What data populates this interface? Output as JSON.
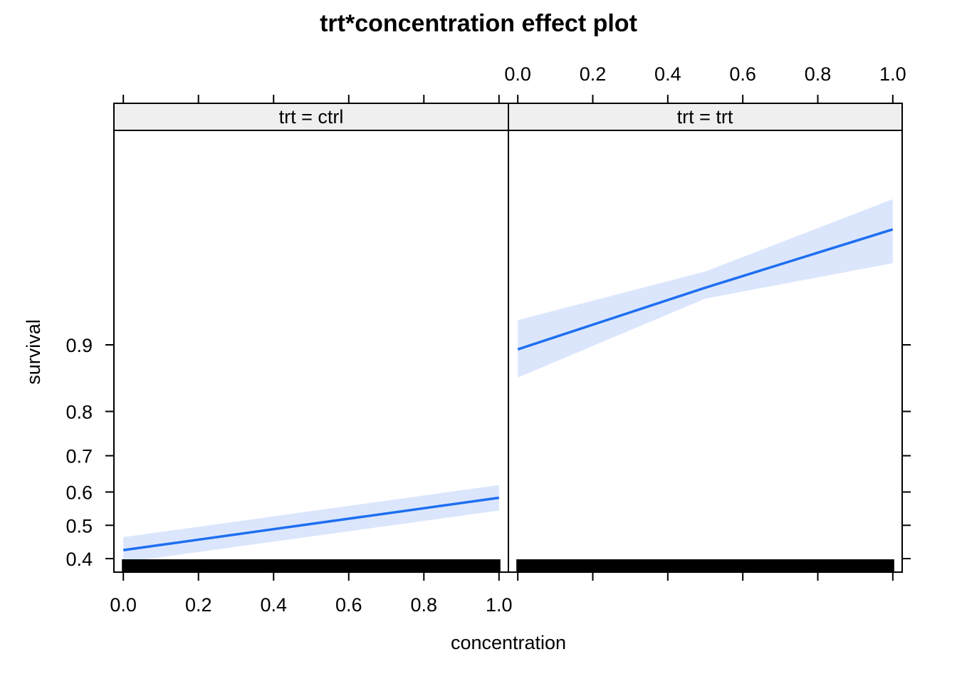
{
  "chart_data": {
    "type": "line",
    "title": "trt*concentration effect plot",
    "xlabel": "concentration",
    "ylabel": "survival",
    "xlim": [
      -0.025,
      1.025
    ],
    "x_ticks": [
      "0.0",
      "0.2",
      "0.4",
      "0.6",
      "0.8",
      "1.0"
    ],
    "y_scale": "logit",
    "y_ticks": [
      "0.4",
      "0.5",
      "0.6",
      "0.7",
      "0.8",
      "0.9"
    ],
    "grid": false,
    "colors": {
      "line": "#1e6ff0",
      "band": "#dbe6fd",
      "rug": "#000000",
      "strip": "#efefef"
    },
    "panels": [
      {
        "strip": "trt = ctrl",
        "x": [
          0.0,
          1.0
        ],
        "fit": [
          0.425,
          0.583
        ],
        "lower": [
          0.389,
          0.545
        ],
        "upper": [
          0.464,
          0.62
        ],
        "rug": true
      },
      {
        "strip": "trt = trt",
        "x": [
          0.0,
          0.5,
          1.0
        ],
        "fit": [
          0.895,
          0.9475,
          0.9735
        ],
        "lower": [
          0.858,
          0.9405,
          0.9605
        ],
        "upper": [
          0.924,
          0.9565,
          0.9815
        ],
        "rug": true
      }
    ]
  }
}
